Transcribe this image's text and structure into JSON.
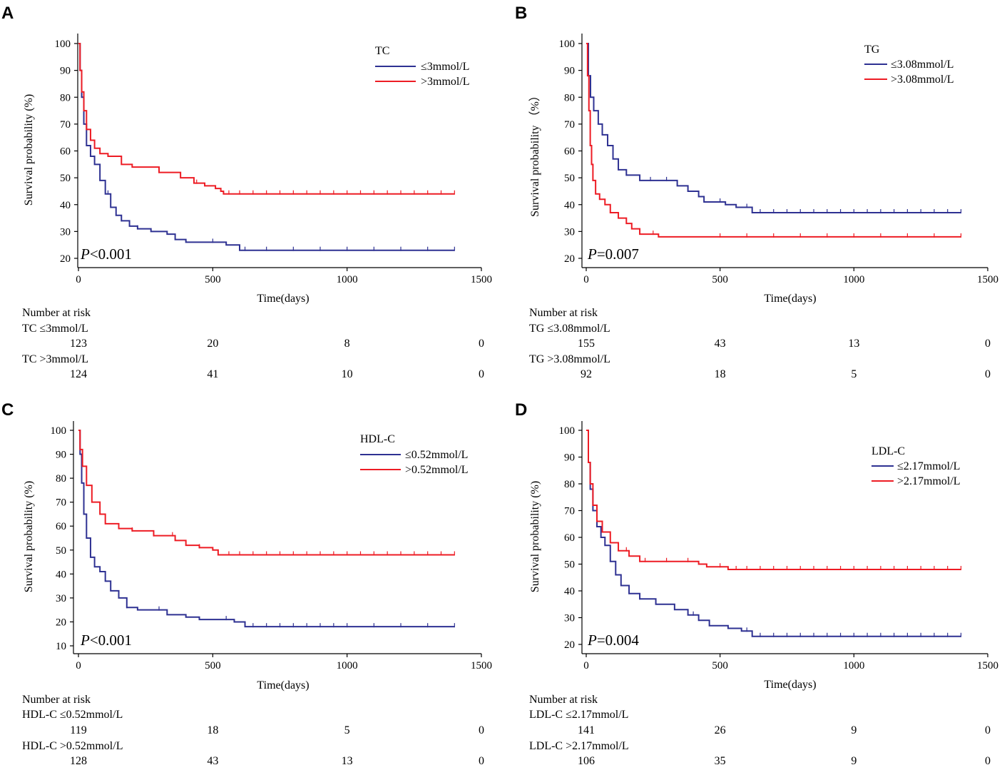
{
  "colors": {
    "low": "#2e3192",
    "high": "#ed1c24",
    "axis": "#000000"
  },
  "chart_data": [
    {
      "panel": "A",
      "type": "line",
      "subtype": "kaplan-meier",
      "legend_title": "TC",
      "series": [
        {
          "name": "≤3mmol/L",
          "curve": [
            [
              0,
              100
            ],
            [
              6,
              90
            ],
            [
              12,
              80
            ],
            [
              20,
              70
            ],
            [
              30,
              62
            ],
            [
              45,
              58
            ],
            [
              60,
              55
            ],
            [
              80,
              49
            ],
            [
              100,
              44
            ],
            [
              120,
              39
            ],
            [
              140,
              36
            ],
            [
              160,
              34
            ],
            [
              190,
              32
            ],
            [
              220,
              31
            ],
            [
              270,
              30
            ],
            [
              330,
              29
            ],
            [
              360,
              27
            ],
            [
              400,
              26
            ],
            [
              500,
              26
            ],
            [
              550,
              25
            ],
            [
              600,
              23
            ],
            [
              1400,
              23
            ]
          ],
          "censor": [
            110,
            160,
            220,
            500,
            620,
            700,
            800,
            900,
            1000,
            1100,
            1200,
            1300,
            1400
          ]
        },
        {
          "name": ">3mmol/L",
          "curve": [
            [
              0,
              100
            ],
            [
              6,
              90
            ],
            [
              12,
              82
            ],
            [
              20,
              75
            ],
            [
              30,
              68
            ],
            [
              45,
              64
            ],
            [
              60,
              61
            ],
            [
              80,
              59
            ],
            [
              110,
              58
            ],
            [
              160,
              55
            ],
            [
              200,
              54
            ],
            [
              300,
              52
            ],
            [
              380,
              50
            ],
            [
              430,
              48
            ],
            [
              470,
              47
            ],
            [
              510,
              46
            ],
            [
              530,
              45
            ],
            [
              540,
              44
            ],
            [
              1400,
              44
            ]
          ],
          "censor": [
            300,
            440,
            560,
            600,
            650,
            700,
            750,
            800,
            850,
            900,
            950,
            1000,
            1050,
            1100,
            1150,
            1200,
            1250,
            1300,
            1350,
            1400
          ]
        }
      ],
      "xlim": [
        0,
        1500
      ],
      "ylim": [
        20,
        100
      ],
      "xticks": [
        0,
        500,
        1000,
        1500
      ],
      "yticks": [
        20,
        30,
        40,
        50,
        60,
        70,
        80,
        90,
        100
      ],
      "xlabel": "Time(days)",
      "ylabel": "Survival probability (%)",
      "p_label": "P",
      "p_value": "<0.001",
      "risk_title": "Number at risk",
      "risk_rows": [
        {
          "label": "TC ≤3mmol/L",
          "values": [
            "123",
            "20",
            "8",
            "0"
          ]
        },
        {
          "label": "TC >3mmol/L",
          "values": [
            "124",
            "41",
            "10",
            "0"
          ]
        }
      ]
    },
    {
      "panel": "B",
      "type": "line",
      "subtype": "kaplan-meier",
      "legend_title": "TG",
      "series": [
        {
          "name": "≤3.08mmol/L",
          "curve": [
            [
              0,
              100
            ],
            [
              8,
              88
            ],
            [
              16,
              80
            ],
            [
              28,
              75
            ],
            [
              45,
              70
            ],
            [
              60,
              66
            ],
            [
              80,
              62
            ],
            [
              100,
              57
            ],
            [
              120,
              53
            ],
            [
              150,
              51
            ],
            [
              200,
              49
            ],
            [
              300,
              49
            ],
            [
              340,
              47
            ],
            [
              380,
              45
            ],
            [
              420,
              43
            ],
            [
              440,
              41
            ],
            [
              520,
              40
            ],
            [
              560,
              39
            ],
            [
              620,
              37
            ],
            [
              1400,
              37
            ]
          ],
          "censor": [
            150,
            240,
            300,
            420,
            500,
            600,
            650,
            700,
            750,
            800,
            850,
            900,
            950,
            1000,
            1050,
            1100,
            1150,
            1200,
            1250,
            1300,
            1350,
            1400
          ]
        },
        {
          "name": ">3.08mmol/L",
          "curve": [
            [
              0,
              100
            ],
            [
              5,
              88
            ],
            [
              10,
              75
            ],
            [
              15,
              62
            ],
            [
              20,
              55
            ],
            [
              25,
              49
            ],
            [
              35,
              44
            ],
            [
              50,
              42
            ],
            [
              70,
              40
            ],
            [
              90,
              37
            ],
            [
              120,
              35
            ],
            [
              150,
              33
            ],
            [
              170,
              31
            ],
            [
              200,
              29
            ],
            [
              270,
              28
            ],
            [
              1400,
              28
            ]
          ],
          "censor": [
            250,
            500,
            600,
            700,
            800,
            900,
            1000,
            1100,
            1200,
            1300,
            1400
          ]
        }
      ],
      "xlim": [
        0,
        1500
      ],
      "ylim": [
        20,
        100
      ],
      "xticks": [
        0,
        500,
        1000,
        1500
      ],
      "yticks": [
        20,
        30,
        40,
        50,
        60,
        70,
        80,
        90,
        100
      ],
      "xlabel": "Time(days)",
      "ylabel": "Survival  probability （%）",
      "p_label": "P",
      "p_value": "=0.007",
      "risk_title": "Number at risk",
      "risk_rows": [
        {
          "label": "TG ≤3.08mmol/L",
          "values": [
            "155",
            "43",
            "13",
            "0"
          ]
        },
        {
          "label": "TG >3.08mmol/L",
          "values": [
            "92",
            "18",
            "5",
            "0"
          ]
        }
      ]
    },
    {
      "panel": "C",
      "type": "line",
      "subtype": "kaplan-meier",
      "legend_title": "HDL-C",
      "series": [
        {
          "name": "≤0.52mmol/L",
          "curve": [
            [
              0,
              100
            ],
            [
              6,
              90
            ],
            [
              12,
              78
            ],
            [
              20,
              65
            ],
            [
              30,
              55
            ],
            [
              45,
              47
            ],
            [
              60,
              43
            ],
            [
              80,
              41
            ],
            [
              100,
              37
            ],
            [
              120,
              33
            ],
            [
              150,
              30
            ],
            [
              180,
              26
            ],
            [
              220,
              25
            ],
            [
              330,
              23
            ],
            [
              400,
              22
            ],
            [
              450,
              21
            ],
            [
              580,
              20
            ],
            [
              620,
              18
            ],
            [
              1400,
              18
            ]
          ],
          "censor": [
            180,
            300,
            550,
            650,
            700,
            750,
            800,
            850,
            900,
            950,
            1000,
            1100,
            1200,
            1300,
            1400
          ]
        },
        {
          "name": ">0.52mmol/L",
          "curve": [
            [
              0,
              100
            ],
            [
              6,
              92
            ],
            [
              15,
              85
            ],
            [
              30,
              77
            ],
            [
              50,
              70
            ],
            [
              80,
              65
            ],
            [
              100,
              61
            ],
            [
              150,
              59
            ],
            [
              200,
              58
            ],
            [
              280,
              56
            ],
            [
              360,
              54
            ],
            [
              400,
              52
            ],
            [
              450,
              51
            ],
            [
              500,
              50
            ],
            [
              520,
              48
            ],
            [
              1400,
              48
            ]
          ],
          "censor": [
            200,
            280,
            350,
            450,
            520,
            560,
            600,
            650,
            700,
            750,
            800,
            850,
            900,
            950,
            1000,
            1050,
            1100,
            1150,
            1200,
            1250,
            1300,
            1350,
            1400
          ]
        }
      ],
      "xlim": [
        0,
        1500
      ],
      "ylim": [
        10,
        100
      ],
      "xticks": [
        0,
        500,
        1000,
        1500
      ],
      "yticks": [
        10,
        20,
        30,
        40,
        50,
        60,
        70,
        80,
        90,
        100
      ],
      "xlabel": "Time(days)",
      "ylabel": "Survival probability (%)",
      "p_label": "P",
      "p_value": "<0.001",
      "risk_title": "Number at risk",
      "risk_rows": [
        {
          "label": "HDL-C ≤0.52mmol/L",
          "values": [
            "119",
            "18",
            "5",
            "0"
          ]
        },
        {
          "label": "HDL-C >0.52mmol/L",
          "values": [
            "128",
            "43",
            "13",
            "0"
          ]
        }
      ]
    },
    {
      "panel": "D",
      "type": "line",
      "subtype": "kaplan-meier",
      "legend_title": "LDL-C",
      "series": [
        {
          "name": "≤2.17mmol/L",
          "curve": [
            [
              0,
              100
            ],
            [
              8,
              88
            ],
            [
              15,
              78
            ],
            [
              25,
              70
            ],
            [
              40,
              64
            ],
            [
              55,
              60
            ],
            [
              70,
              57
            ],
            [
              90,
              51
            ],
            [
              110,
              46
            ],
            [
              130,
              42
            ],
            [
              160,
              39
            ],
            [
              200,
              37
            ],
            [
              260,
              35
            ],
            [
              330,
              33
            ],
            [
              380,
              31
            ],
            [
              420,
              29
            ],
            [
              460,
              27
            ],
            [
              530,
              26
            ],
            [
              580,
              25
            ],
            [
              620,
              23
            ],
            [
              1400,
              23
            ]
          ],
          "censor": [
            200,
            400,
            600,
            650,
            700,
            750,
            800,
            850,
            900,
            950,
            1000,
            1050,
            1100,
            1150,
            1200,
            1250,
            1300,
            1350,
            1400
          ]
        },
        {
          "name": ">2.17mmol/L",
          "curve": [
            [
              0,
              100
            ],
            [
              8,
              88
            ],
            [
              15,
              80
            ],
            [
              25,
              72
            ],
            [
              40,
              66
            ],
            [
              60,
              62
            ],
            [
              90,
              58
            ],
            [
              120,
              55
            ],
            [
              160,
              53
            ],
            [
              200,
              51
            ],
            [
              300,
              51
            ],
            [
              420,
              50
            ],
            [
              450,
              49
            ],
            [
              530,
              48
            ],
            [
              1400,
              48
            ]
          ],
          "censor": [
            150,
            220,
            300,
            380,
            500,
            560,
            600,
            650,
            700,
            750,
            800,
            850,
            900,
            950,
            1000,
            1050,
            1100,
            1150,
            1200,
            1250,
            1300,
            1350,
            1400
          ]
        }
      ],
      "xlim": [
        0,
        1500
      ],
      "ylim": [
        20,
        100
      ],
      "xticks": [
        0,
        500,
        1000,
        1500
      ],
      "yticks": [
        20,
        30,
        40,
        50,
        60,
        70,
        80,
        90,
        100
      ],
      "xlabel": "Time(days)",
      "ylabel": "Survival probability (%)",
      "p_label": "P",
      "p_value": "=0.004",
      "risk_title": "Number at risk",
      "risk_rows": [
        {
          "label": "LDL-C ≤2.17mmol/L",
          "values": [
            "141",
            "26",
            "9",
            "0"
          ]
        },
        {
          "label": "LDL-C >2.17mmol/L",
          "values": [
            "106",
            "35",
            "9",
            "0"
          ]
        }
      ]
    }
  ]
}
